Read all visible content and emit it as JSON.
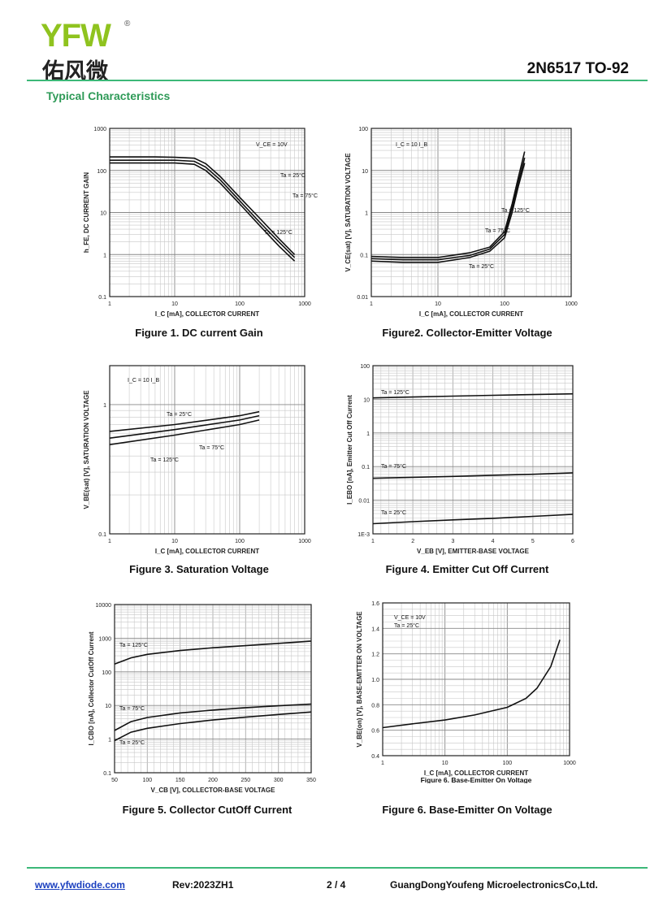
{
  "header": {
    "logo_text": "YFW",
    "logo_registered": "®",
    "logo_chinese": "佑风微",
    "part_number": "2N6517 TO-92",
    "section_title": "Typical Characteristics"
  },
  "charts": [
    {
      "id": "fig1",
      "caption": "Figure 1. DC current Gain",
      "ylabel": "h_FE, DC CURRENT GAIN",
      "xlabel": "I_C [mA], COLLECTOR CURRENT",
      "xscale": "log",
      "yscale": "log",
      "xticks": [
        "1",
        "10",
        "100",
        "1000"
      ],
      "yticks": [
        "0.1",
        "1",
        "10",
        "100",
        "1000"
      ],
      "annotations": [
        "V_CE = 10V",
        "Ta = 25°C",
        "Ta = 75°C",
        "Ta = 125°C"
      ]
    },
    {
      "id": "fig2",
      "caption": "Figure2. Collector-Emitter Voltage",
      "ylabel": "V_CE(sat) [V], SATURATION VOLTAGE",
      "xlabel": "I_C [mA], COLLECTOR CURRENT",
      "xscale": "log",
      "yscale": "log",
      "xticks": [
        "1",
        "10",
        "100",
        "1000"
      ],
      "yticks": [
        "0.01",
        "0.1",
        "1",
        "10",
        "100"
      ],
      "annotations": [
        "I_C = 10 I_B",
        "Ta = 125°C",
        "Ta = 75°C",
        "Ta = 25°C"
      ]
    },
    {
      "id": "fig3",
      "caption": "Figure 3. Saturation Voltage",
      "ylabel": "V_BE(sat) [V], SATURATION VOLTAGE",
      "xlabel": "I_C [mA], COLLECTOR CURRENT",
      "xscale": "log",
      "yscale": "log",
      "xticks": [
        "1",
        "10",
        "100",
        "1000"
      ],
      "yticks": [
        "0.1",
        "1"
      ],
      "annotations": [
        "I_C = 10 I_B",
        "Ta = 25°C",
        "Ta = 75°C",
        "Ta = 125°C"
      ]
    },
    {
      "id": "fig4",
      "caption": "Figure 4. Emitter Cut Off Current",
      "ylabel": "I_EBO [nA], Emitter Cut Off Current",
      "xlabel": "V_EB [V], EMITTER-BASE VOLTAGE",
      "xscale": "linear",
      "yscale": "log",
      "xticks": [
        "1",
        "2",
        "3",
        "4",
        "5",
        "6"
      ],
      "yticks": [
        "1E-3",
        "0.01",
        "0.1",
        "1",
        "10",
        "100"
      ],
      "annotations": [
        "Ta = 125°C",
        "Ta = 75°C",
        "Ta = 25°C"
      ]
    },
    {
      "id": "fig5",
      "caption": "Figure 5. Collector CutOff Current",
      "ylabel": "I_CBO [nA], Collector CutOff Current",
      "xlabel": "V_CB [V], COLLECTOR-BASE VOLTAGE",
      "xscale": "linear",
      "yscale": "log",
      "xticks": [
        "50",
        "100",
        "150",
        "200",
        "250",
        "300",
        "350"
      ],
      "yticks": [
        "0.1",
        "1",
        "10",
        "100",
        "1000",
        "10000"
      ],
      "annotations": [
        "Ta = 125°C",
        "Ta = 75°C",
        "Ta = 25°C"
      ]
    },
    {
      "id": "fig6",
      "caption": "Figure 6. Base-Emitter On Voltage",
      "inner_caption": "Figure 6. Base-Emitter On Voltage",
      "ylabel": "V_BE(on) [V], BASE-EMITTER ON VOLTAGE",
      "xlabel": "I_C [mA], COLLECTOR CURRENT",
      "xscale": "log",
      "yscale": "linear",
      "xticks": [
        "1",
        "10",
        "100",
        "1000"
      ],
      "yticks": [
        "0.4",
        "0.6",
        "0.8",
        "1.0",
        "1.2",
        "1.4",
        "1.6"
      ],
      "annotations": [
        "V_CE = 10V",
        "Ta = 25°C"
      ]
    }
  ],
  "chart_data": [
    {
      "type": "line",
      "title": "",
      "x_scale": "log",
      "y_scale": "log",
      "xlim": [
        1,
        1000
      ],
      "ylim": [
        0.1,
        1000
      ],
      "series": [
        {
          "name": "Ta = 25°C",
          "x": [
            1,
            5,
            10,
            20,
            30,
            50,
            100,
            200,
            400,
            700
          ],
          "y": [
            150,
            150,
            150,
            140,
            100,
            50,
            16,
            5,
            1.6,
            0.7
          ]
        },
        {
          "name": "Ta = 75°C",
          "x": [
            1,
            5,
            10,
            20,
            30,
            50,
            100,
            200,
            400,
            700
          ],
          "y": [
            175,
            175,
            175,
            165,
            120,
            60,
            19,
            6,
            2,
            0.85
          ]
        },
        {
          "name": "Ta = 125°C",
          "x": [
            1,
            5,
            10,
            20,
            30,
            50,
            100,
            200,
            400,
            700
          ],
          "y": [
            210,
            210,
            205,
            195,
            145,
            72,
            23,
            7.5,
            2.4,
            1.0
          ]
        }
      ]
    },
    {
      "type": "line",
      "title": "",
      "x_scale": "log",
      "y_scale": "log",
      "xlim": [
        1,
        1000
      ],
      "ylim": [
        0.01,
        100
      ],
      "series": [
        {
          "name": "Ta = 25°C",
          "x": [
            1,
            3,
            10,
            30,
            60,
            100,
            130,
            160,
            200
          ],
          "y": [
            0.07,
            0.065,
            0.065,
            0.085,
            0.12,
            0.25,
            1.0,
            4,
            15
          ]
        },
        {
          "name": "Ta = 75°C",
          "x": [
            1,
            3,
            10,
            30,
            60,
            100,
            130,
            160,
            200
          ],
          "y": [
            0.08,
            0.075,
            0.075,
            0.095,
            0.135,
            0.3,
            1.3,
            5,
            20
          ]
        },
        {
          "name": "Ta = 125°C",
          "x": [
            1,
            3,
            10,
            30,
            60,
            100,
            130,
            160,
            200
          ],
          "y": [
            0.09,
            0.085,
            0.085,
            0.11,
            0.15,
            0.35,
            1.6,
            6.5,
            28
          ]
        }
      ]
    },
    {
      "type": "line",
      "title": "",
      "x_scale": "log",
      "y_scale": "log",
      "xlim": [
        1,
        1000
      ],
      "ylim": [
        0.1,
        2
      ],
      "series": [
        {
          "name": "Ta = 25°C",
          "x": [
            1,
            10,
            100,
            200
          ],
          "y": [
            0.62,
            0.7,
            0.82,
            0.88
          ]
        },
        {
          "name": "Ta = 75°C",
          "x": [
            1,
            10,
            100,
            200
          ],
          "y": [
            0.55,
            0.64,
            0.76,
            0.82
          ]
        },
        {
          "name": "Ta = 125°C",
          "x": [
            1,
            10,
            100,
            200
          ],
          "y": [
            0.49,
            0.58,
            0.7,
            0.76
          ]
        }
      ]
    },
    {
      "type": "line",
      "title": "",
      "x_scale": "linear",
      "y_scale": "log",
      "xlim": [
        1,
        6
      ],
      "ylim": [
        0.001,
        100
      ],
      "series": [
        {
          "name": "Ta = 125°C",
          "x": [
            1,
            2,
            3,
            4,
            5,
            6
          ],
          "y": [
            11,
            11.7,
            12.4,
            13.1,
            13.8,
            14.5
          ]
        },
        {
          "name": "Ta = 75°C",
          "x": [
            1,
            2,
            3,
            4,
            5,
            6
          ],
          "y": [
            0.045,
            0.048,
            0.051,
            0.055,
            0.059,
            0.065
          ]
        },
        {
          "name": "Ta = 25°C",
          "x": [
            1,
            2,
            3,
            4,
            5,
            6
          ],
          "y": [
            0.002,
            0.0023,
            0.0026,
            0.0029,
            0.0033,
            0.0038
          ]
        }
      ]
    },
    {
      "type": "line",
      "title": "",
      "x_scale": "linear",
      "y_scale": "log",
      "xlim": [
        50,
        350
      ],
      "ylim": [
        0.1,
        10000
      ],
      "series": [
        {
          "name": "Ta = 125°C",
          "x": [
            50,
            75,
            100,
            150,
            200,
            250,
            300,
            350
          ],
          "y": [
            170,
            260,
            330,
            430,
            520,
            600,
            700,
            820
          ]
        },
        {
          "name": "Ta = 75°C",
          "x": [
            50,
            75,
            100,
            150,
            200,
            250,
            300,
            350
          ],
          "y": [
            1.8,
            3.3,
            4.4,
            6,
            7.3,
            8.6,
            9.8,
            11
          ]
        },
        {
          "name": "Ta = 25°C",
          "x": [
            50,
            75,
            100,
            150,
            200,
            250,
            300,
            350
          ],
          "y": [
            0.9,
            1.6,
            2.1,
            2.9,
            3.7,
            4.5,
            5.4,
            6.4
          ]
        }
      ]
    },
    {
      "type": "line",
      "title": "",
      "x_scale": "log",
      "y_scale": "linear",
      "xlim": [
        1,
        1000
      ],
      "ylim": [
        0.4,
        1.6
      ],
      "series": [
        {
          "name": "",
          "x": [
            1,
            3,
            10,
            30,
            100,
            200,
            300,
            500,
            700
          ],
          "y": [
            0.62,
            0.65,
            0.68,
            0.72,
            0.78,
            0.85,
            0.93,
            1.1,
            1.31
          ]
        }
      ]
    }
  ],
  "footer": {
    "website": "www.yfwdiode.com",
    "revision": "Rev:2023ZH1",
    "page": "2 / 4",
    "company": "GuangDongYoufeng MicroelectronicsCo,Ltd."
  }
}
